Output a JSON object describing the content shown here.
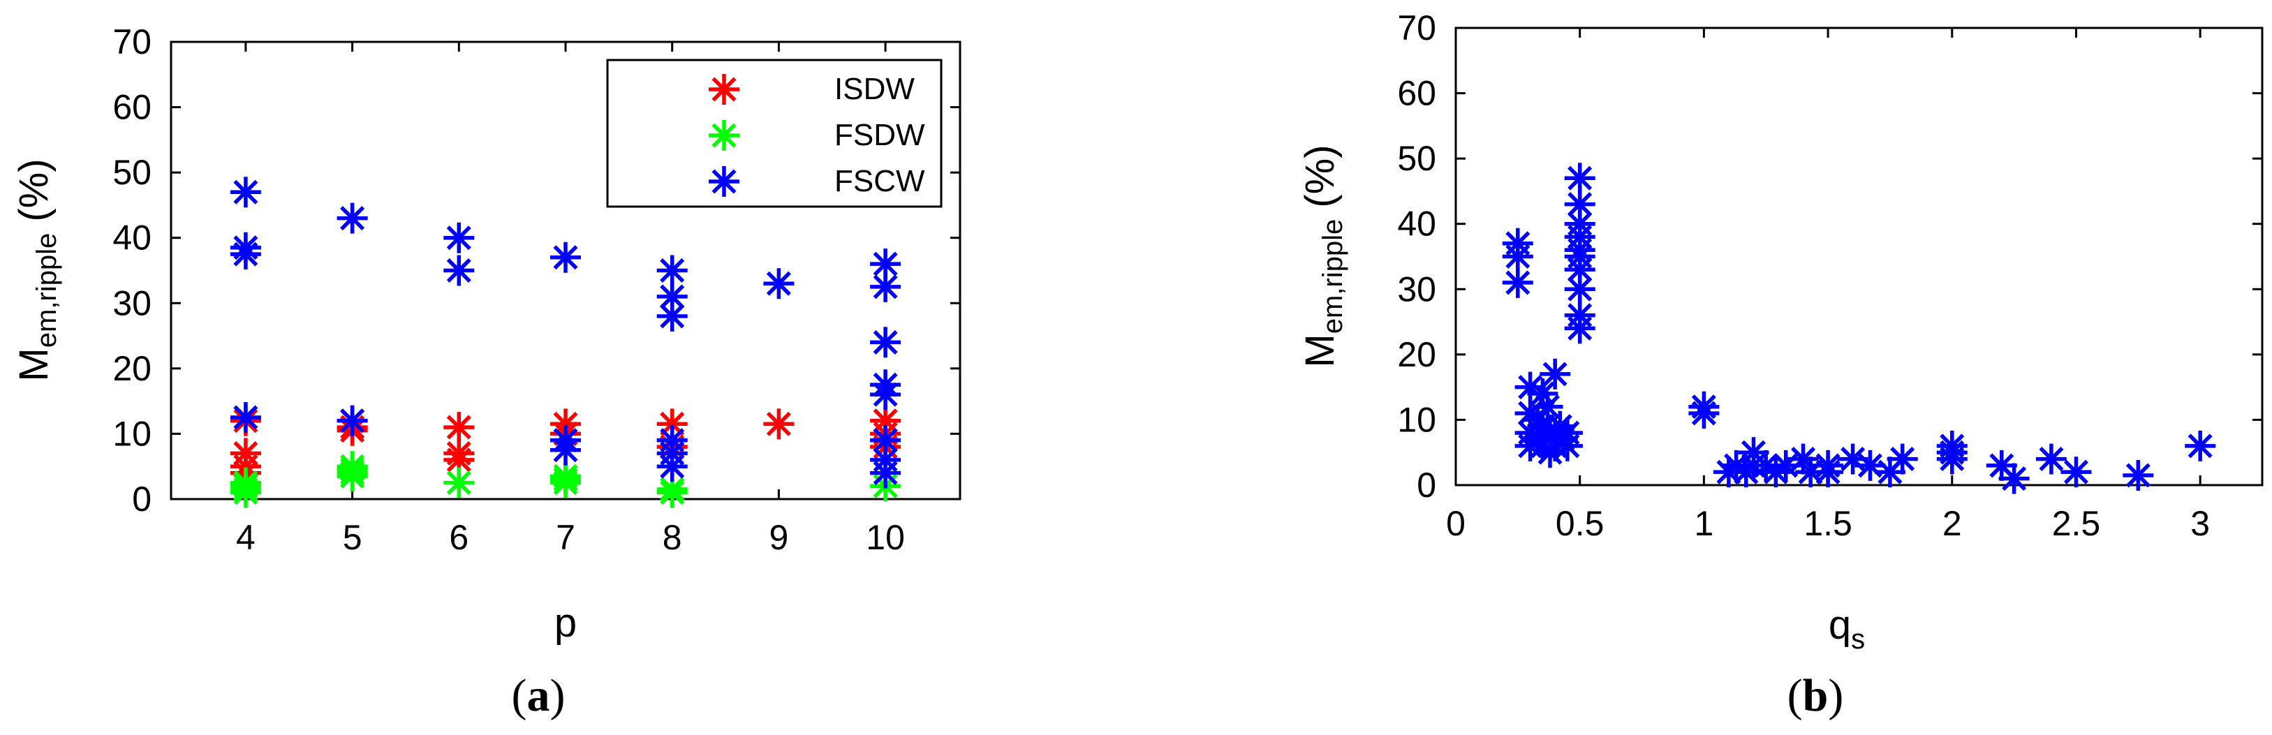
{
  "chart_data": [
    {
      "type": "scatter",
      "caption_open": "(",
      "caption_letter": "a",
      "caption_close": ")",
      "title": "",
      "xlabel": "p",
      "ylabel_main": "M",
      "ylabel_sub": "em,ripple",
      "ylabel_unit": " (%)",
      "xlim": [
        3.3,
        10.7
      ],
      "ylim": [
        0,
        70
      ],
      "xticks": [
        4,
        5,
        6,
        7,
        8,
        9,
        10
      ],
      "yticks": [
        0,
        10,
        20,
        30,
        40,
        50,
        60,
        70
      ],
      "grid": false,
      "legend_position": "top-right",
      "series": [
        {
          "name": "ISDW",
          "color": "#ff0000",
          "points": [
            [
              4,
              12
            ],
            [
              4,
              7
            ],
            [
              4,
              5
            ],
            [
              4,
              4
            ],
            [
              5,
              12
            ],
            [
              5,
              11
            ],
            [
              5,
              10.5
            ],
            [
              6,
              11
            ],
            [
              6,
              7
            ],
            [
              6,
              6
            ],
            [
              7,
              11.5
            ],
            [
              7,
              10
            ],
            [
              8,
              11.5
            ],
            [
              8,
              8
            ],
            [
              9,
              11.5
            ],
            [
              10,
              12
            ],
            [
              10,
              10
            ],
            [
              10,
              8
            ]
          ]
        },
        {
          "name": "FSDW",
          "color": "#00ff00",
          "points": [
            [
              4,
              2.5
            ],
            [
              4,
              2
            ],
            [
              4,
              1.5
            ],
            [
              4,
              1
            ],
            [
              5,
              5
            ],
            [
              5,
              4.5
            ],
            [
              5,
              4
            ],
            [
              5,
              3.5
            ],
            [
              6,
              2.5
            ],
            [
              7,
              3.5
            ],
            [
              7,
              3
            ],
            [
              7,
              2.5
            ],
            [
              8,
              1.5
            ],
            [
              8,
              1
            ],
            [
              10,
              2
            ]
          ]
        },
        {
          "name": "FSCW",
          "color": "#0000ff",
          "points": [
            [
              4,
              47
            ],
            [
              4,
              38.5
            ],
            [
              4,
              37.5
            ],
            [
              4,
              12.5
            ],
            [
              5,
              43
            ],
            [
              5,
              12
            ],
            [
              6,
              40
            ],
            [
              6,
              35
            ],
            [
              7,
              37
            ],
            [
              7,
              9
            ],
            [
              7,
              7.5
            ],
            [
              8,
              35
            ],
            [
              8,
              31
            ],
            [
              8,
              28
            ],
            [
              8,
              9
            ],
            [
              8,
              7
            ],
            [
              8,
              5
            ],
            [
              9,
              33
            ],
            [
              10,
              36
            ],
            [
              10,
              32.5
            ],
            [
              10,
              24
            ],
            [
              10,
              17.5
            ],
            [
              10,
              16
            ],
            [
              10,
              9
            ],
            [
              10,
              6
            ],
            [
              10,
              4
            ]
          ]
        }
      ]
    },
    {
      "type": "scatter",
      "caption_open": "(",
      "caption_letter": "b",
      "caption_close": ")",
      "title": "",
      "xlabel_main": "q",
      "xlabel_sub": "s",
      "ylabel_main": "M",
      "ylabel_sub": "em,ripple",
      "ylabel_unit": " (%)",
      "xlim": [
        0,
        3.25
      ],
      "ylim": [
        0,
        70
      ],
      "xticks": [
        0,
        0.5,
        1,
        1.5,
        2,
        2.5,
        3
      ],
      "xtick_labels": [
        "0",
        "0.5",
        "1",
        "1.5",
        "2",
        "2.5",
        "3"
      ],
      "yticks": [
        0,
        10,
        20,
        30,
        40,
        50,
        60,
        70
      ],
      "grid": false,
      "series": [
        {
          "color": "#0000ff",
          "points": [
            [
              0.25,
              37
            ],
            [
              0.25,
              35
            ],
            [
              0.25,
              31
            ],
            [
              0.3,
              15
            ],
            [
              0.3,
              11
            ],
            [
              0.3,
              8
            ],
            [
              0.3,
              6
            ],
            [
              0.33,
              10
            ],
            [
              0.33,
              7
            ],
            [
              0.35,
              14
            ],
            [
              0.35,
              9
            ],
            [
              0.35,
              6
            ],
            [
              0.37,
              12
            ],
            [
              0.38,
              8
            ],
            [
              0.38,
              5
            ],
            [
              0.4,
              17
            ],
            [
              0.4,
              8
            ],
            [
              0.4,
              6
            ],
            [
              0.42,
              9
            ],
            [
              0.43,
              7
            ],
            [
              0.45,
              8
            ],
            [
              0.45,
              6
            ],
            [
              0.5,
              47
            ],
            [
              0.5,
              43
            ],
            [
              0.5,
              40
            ],
            [
              0.5,
              38
            ],
            [
              0.5,
              36
            ],
            [
              0.5,
              35
            ],
            [
              0.5,
              33
            ],
            [
              0.5,
              30
            ],
            [
              0.5,
              26
            ],
            [
              0.5,
              24
            ],
            [
              1,
              12
            ],
            [
              1,
              11
            ],
            [
              1.1,
              2
            ],
            [
              1.13,
              3
            ],
            [
              1.17,
              2
            ],
            [
              1.2,
              5
            ],
            [
              1.2,
              3
            ],
            [
              1.25,
              3
            ],
            [
              1.29,
              2
            ],
            [
              1.33,
              3
            ],
            [
              1.4,
              4
            ],
            [
              1.43,
              2
            ],
            [
              1.5,
              3
            ],
            [
              1.5,
              2
            ],
            [
              1.6,
              4
            ],
            [
              1.67,
              3
            ],
            [
              1.75,
              2
            ],
            [
              1.8,
              4
            ],
            [
              2,
              6
            ],
            [
              2,
              5
            ],
            [
              2,
              4
            ],
            [
              2.2,
              3
            ],
            [
              2.25,
              1
            ],
            [
              2.4,
              4
            ],
            [
              2.5,
              2
            ],
            [
              2.75,
              1.5
            ],
            [
              3,
              6
            ]
          ]
        }
      ]
    }
  ]
}
